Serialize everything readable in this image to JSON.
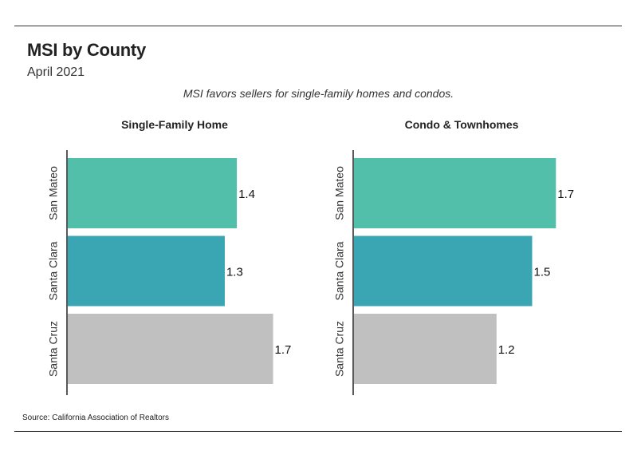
{
  "header": {
    "title": "MSI by County",
    "subtitle": "April 2021",
    "caption": "MSI favors sellers for single-family homes and condos."
  },
  "source": "Source:  California Association of Realtors",
  "colors": {
    "San Mateo": "#52bfaa",
    "Santa Clara": "#3aa6b3",
    "Santa Cruz": "#c0c0c0"
  },
  "chart_data": [
    {
      "type": "bar",
      "orientation": "horizontal",
      "title": "Single-Family Home",
      "categories": [
        "San Mateo",
        "Santa Clara",
        "Santa Cruz"
      ],
      "values": [
        1.4,
        1.3,
        1.7
      ],
      "xlim": [
        0,
        2
      ]
    },
    {
      "type": "bar",
      "orientation": "horizontal",
      "title": "Condo & Townhomes",
      "categories": [
        "San Mateo",
        "Santa Clara",
        "Santa Cruz"
      ],
      "values": [
        1.7,
        1.5,
        1.2
      ],
      "xlim": [
        0,
        2
      ]
    }
  ]
}
